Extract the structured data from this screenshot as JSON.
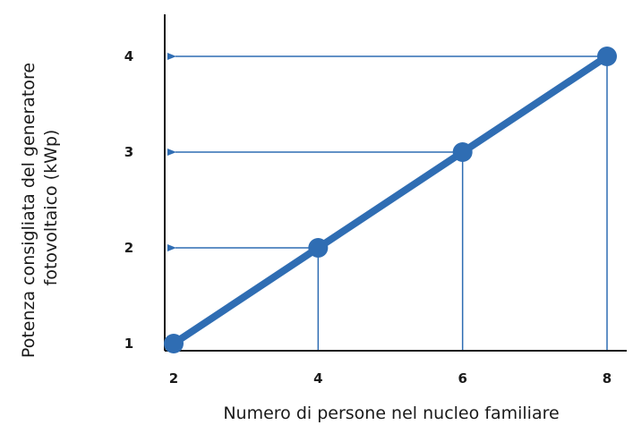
{
  "chart_data": {
    "type": "line",
    "xlabel": "Numero di persone nel nucleo familiare",
    "ylabel_lines": [
      "Potenza consigliata del generatore",
      "fotovoltaico (kWp)"
    ],
    "x_ticks": [
      "2",
      "4",
      "6",
      "8"
    ],
    "y_ticks": [
      "1",
      "2",
      "3",
      "4"
    ],
    "xlim": [
      2,
      8
    ],
    "ylim": [
      1,
      4
    ],
    "series": [
      {
        "x": [
          2,
          4,
          6,
          8
        ],
        "y": [
          1,
          2,
          3,
          4
        ]
      }
    ],
    "grid": false,
    "colors": {
      "line": "#2f6db3",
      "guides": "#2f6db3",
      "axis": "#1a1a1a"
    }
  }
}
